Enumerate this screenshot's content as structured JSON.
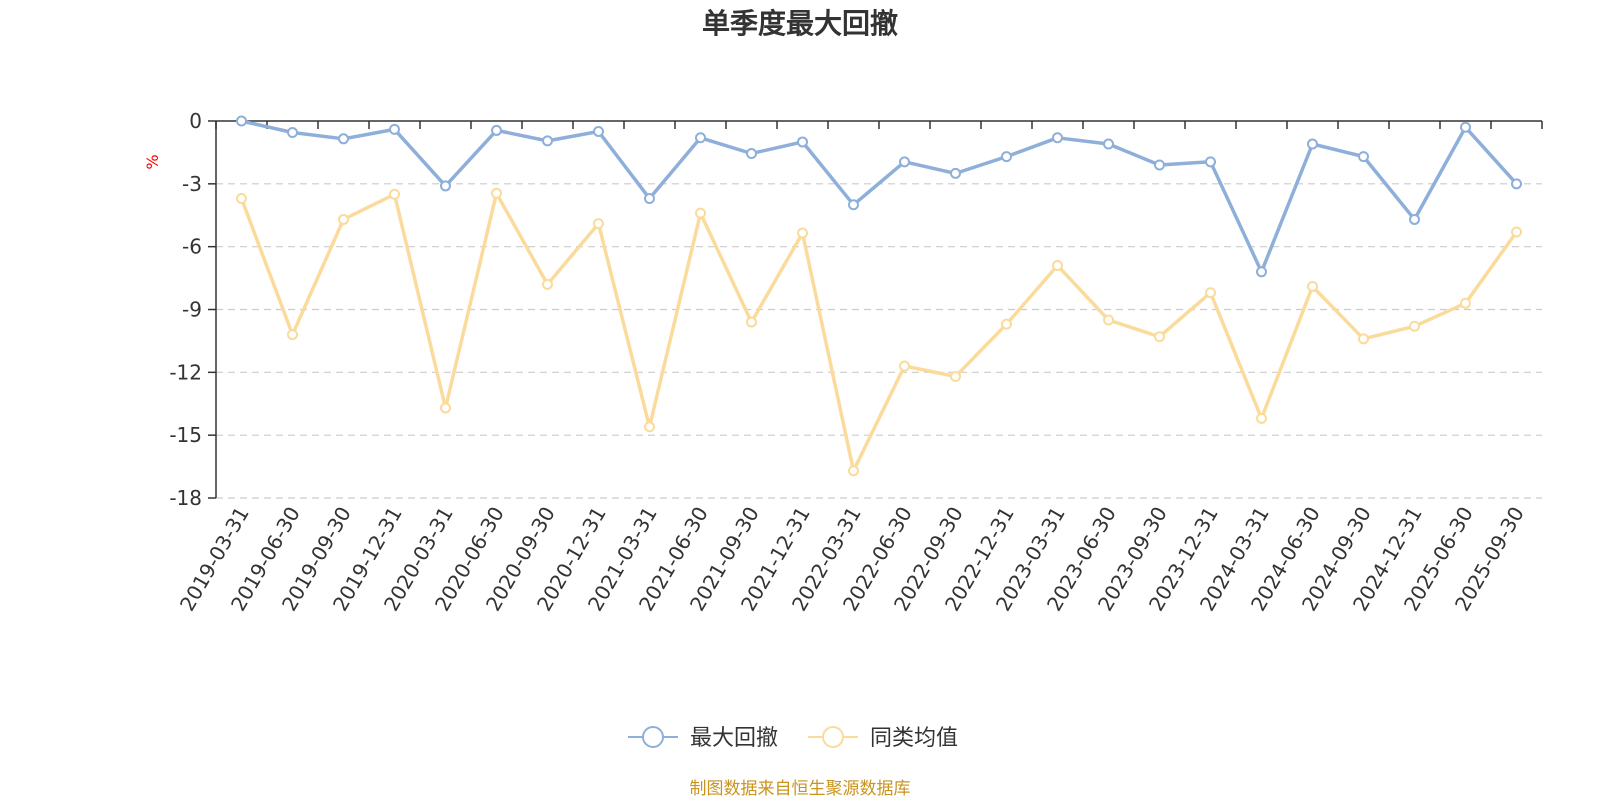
{
  "chart_data": {
    "type": "line",
    "title": "单季度最大回撤",
    "ylabel": "%",
    "ylabel_color": "#ff0000",
    "ylim": [
      -18,
      0
    ],
    "yticks": [
      0,
      -3,
      -6,
      -9,
      -12,
      -15,
      -18
    ],
    "grid": true,
    "legend_position": "bottom",
    "x": [
      "2019-03-31",
      "2019-06-30",
      "2019-09-30",
      "2019-12-31",
      "2020-03-31",
      "2020-06-30",
      "2020-09-30",
      "2020-12-31",
      "2021-03-31",
      "2021-06-30",
      "2021-09-30",
      "2021-12-31",
      "2022-03-31",
      "2022-06-30",
      "2022-09-30",
      "2022-12-31",
      "2023-03-31",
      "2023-06-30",
      "2023-09-30",
      "2023-12-31",
      "2024-03-31",
      "2024-06-30",
      "2024-09-30",
      "2024-12-31",
      "2025-06-30",
      "2025-09-30"
    ],
    "series": [
      {
        "name": "最大回撤",
        "color": "#8eafd9",
        "values": [
          0,
          -0.55,
          -0.85,
          -0.4,
          -3.1,
          -0.45,
          -0.95,
          -0.5,
          -3.7,
          -0.8,
          -1.55,
          -1.0,
          -4.0,
          -1.95,
          -2.5,
          -1.7,
          -0.8,
          -1.1,
          -2.1,
          -1.95,
          -7.2,
          -1.1,
          -1.7,
          -4.7,
          -0.3,
          -3.0
        ]
      },
      {
        "name": "同类均值",
        "color": "#fadb9b",
        "values": [
          -3.7,
          -10.2,
          -4.7,
          -3.5,
          -13.7,
          -3.45,
          -7.8,
          -4.9,
          -14.6,
          -4.4,
          -9.6,
          -5.35,
          -16.7,
          -11.7,
          -12.2,
          -9.7,
          -6.9,
          -9.5,
          -10.3,
          -8.2,
          -14.2,
          -7.9,
          -10.4,
          -9.8,
          -8.7,
          -5.3
        ]
      }
    ]
  },
  "source": {
    "text": "制图数据来自恒生聚源数据库",
    "color": "#c8941e"
  }
}
